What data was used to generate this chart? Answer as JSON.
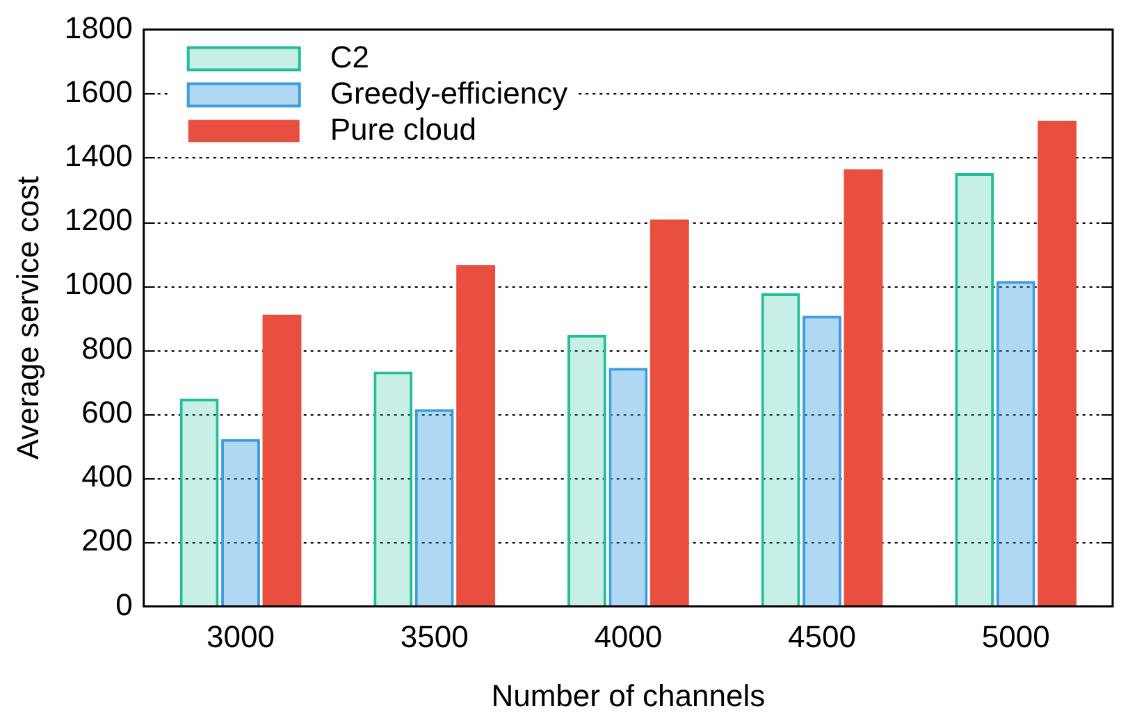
{
  "chart_data": {
    "type": "bar",
    "xlabel": "Number of channels",
    "ylabel": "Average service cost",
    "categories": [
      "3000",
      "3500",
      "4000",
      "4500",
      "5000"
    ],
    "series": [
      {
        "name": "C2",
        "color": "#20bf9b",
        "values": [
          648,
          733,
          847,
          977,
          1352
        ]
      },
      {
        "name": "Greedy-efficiency",
        "color": "#3b9de0",
        "values": [
          522,
          615,
          744,
          907,
          1015
        ]
      },
      {
        "name": "Pure cloud",
        "color": "#e84f3f",
        "values": [
          910,
          1065,
          1207,
          1364,
          1515
        ]
      }
    ],
    "ylim": [
      0,
      1800
    ],
    "yticks": [
      0,
      200,
      400,
      600,
      800,
      1000,
      1200,
      1400,
      1600,
      1800
    ],
    "grid": "y",
    "legend": "top left"
  }
}
